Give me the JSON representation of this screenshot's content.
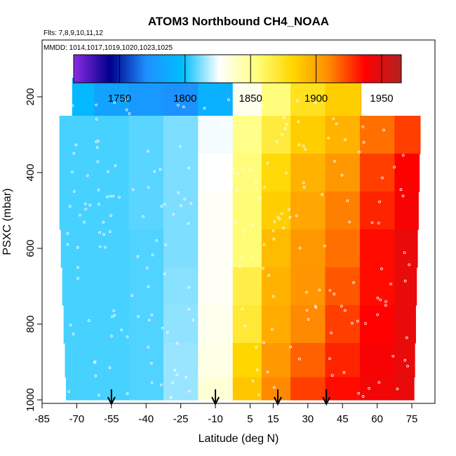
{
  "chart_data": {
    "type": "heatmap",
    "title": "ATOM3 Northbound CH4_NOAA",
    "subtitle_flights": "Flts: 7,8,9,10,11,12",
    "subtitle_dates": "MMDD: 1014,1017,1019,1020,1023,1025",
    "xlabel": "Latitude (deg N)",
    "ylabel": "PSXC (mbar)",
    "xlim": [
      -85,
      85
    ],
    "ylim": [
      1000,
      50
    ],
    "y_reversed": true,
    "x_ticks": [
      "-85",
      "-70",
      "-55",
      "-40",
      "-25",
      "-10",
      "5",
      "15",
      "30",
      "45",
      "60",
      "75"
    ],
    "y_ticks": [
      "200",
      "400",
      "600",
      "800",
      "1000"
    ],
    "colorbar": {
      "min": 1715,
      "max": 1965,
      "ticks": [
        "1750",
        "1800",
        "1850",
        "1900",
        "1950"
      ],
      "colors": [
        "#8a2be2",
        "#00008b",
        "#1e90ff",
        "#00bfff",
        "#ffffff",
        "#ffff80",
        "#ffd700",
        "#ff8c00",
        "#ff0000",
        "#b22222"
      ]
    },
    "arrows_lat": [
      -55,
      -10,
      17,
      38
    ],
    "lat_centers": [
      -70,
      -55,
      -40,
      -25,
      -10,
      5,
      15,
      30,
      45,
      60,
      75
    ],
    "pressure_levels": [
      200,
      300,
      400,
      500,
      600,
      700,
      800,
      900,
      980
    ],
    "values": [
      [
        1795,
        1782,
        1776,
        1772,
        1790,
        1830,
        1855,
        1875,
        1885,
        1890,
        1898
      ],
      [
        1806,
        1806,
        1808,
        1812,
        1825,
        1852,
        1868,
        1885,
        1895,
        1915,
        1925
      ],
      [
        1806,
        1806,
        1808,
        1812,
        1826,
        1855,
        1880,
        1895,
        1905,
        1925,
        1938
      ],
      [
        1806,
        1806,
        1808,
        1812,
        1828,
        1856,
        1885,
        1900,
        1912,
        1930,
        1940
      ],
      [
        1806,
        1806,
        1807,
        1812,
        1828,
        1856,
        1892,
        1905,
        1915,
        1935,
        1945
      ],
      [
        1806,
        1806,
        1807,
        1813,
        1828,
        1866,
        1895,
        1906,
        1920,
        1935,
        1945
      ],
      [
        1806,
        1806,
        1807,
        1814,
        1830,
        1870,
        1898,
        1910,
        1925,
        1937,
        1945
      ],
      [
        1806,
        1806,
        1807,
        1815,
        1832,
        1882,
        1905,
        1918,
        1930,
        1940,
        1945
      ],
      [
        1806,
        1806,
        1807,
        1815,
        1835,
        1888,
        1910,
        1925,
        1935,
        1942,
        1945
      ]
    ]
  }
}
